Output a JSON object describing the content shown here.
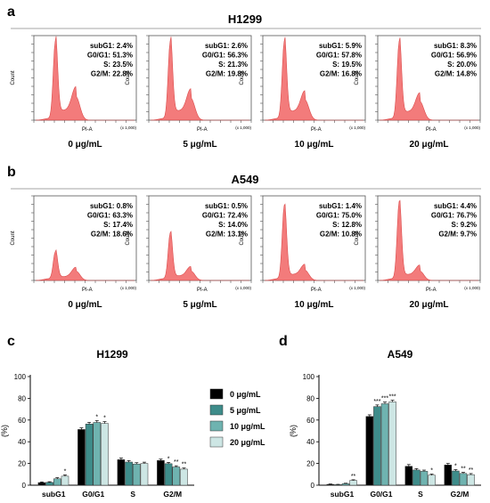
{
  "panel_labels": {
    "a": "a",
    "b": "b",
    "c": "c",
    "d": "d"
  },
  "histogram_axis": {
    "ylabel": "Count",
    "xlabel": "PI-A",
    "xscale": "(x 1,000)"
  },
  "dose_labels": [
    "0 μg/mL",
    "5 μg/mL",
    "10 μg/mL",
    "20 μg/mL"
  ],
  "colors": {
    "histogram_fill": "#f26d6d",
    "histogram_stroke": "#d83a3a",
    "bar_series": [
      "#000000",
      "#3e8c8a",
      "#6fb3b0",
      "#cde6e4"
    ]
  },
  "chart_data": [
    {
      "type": "histogram",
      "panel": "a",
      "title": "H1299",
      "plots": [
        {
          "dose": "0 μg/mL",
          "subG1": "subG1: 2.4%",
          "G0G1": "G0/G1: 51.3%",
          "S": "S: 23.5%",
          "G2M": "G2/M: 22.8%",
          "g1_peak": 1.0,
          "g2_peak": 0.3
        },
        {
          "dose": "5 μg/mL",
          "subG1": "subG1: 2.6%",
          "G0G1": "G0/G1: 56.3%",
          "S": "S: 21.3%",
          "G2M": "G2/M: 19.8%",
          "g1_peak": 1.0,
          "g2_peak": 0.28
        },
        {
          "dose": "10 μg/mL",
          "subG1": "subG1: 5.9%",
          "G0G1": "G0/G1: 57.8%",
          "S": "S: 19.5%",
          "G2M": "G2/M: 16.8%",
          "g1_peak": 1.0,
          "g2_peak": 0.26
        },
        {
          "dose": "20 μg/mL",
          "subG1": "subG1: 8.3%",
          "G0G1": "G0/G1: 56.9%",
          "S": "S: 20.0%",
          "G2M": "G2/M: 14.8%",
          "g1_peak": 1.0,
          "g2_peak": 0.24
        }
      ]
    },
    {
      "type": "histogram",
      "panel": "b",
      "title": "A549",
      "plots": [
        {
          "dose": "0 μg/mL",
          "subG1": "subG1: 0.8%",
          "G0G1": "G0/G1: 63.3%",
          "S": "S: 17.4%",
          "G2M": "G2/M: 18.6%",
          "g1_peak": 0.36,
          "g2_peak": 0.12
        },
        {
          "dose": "5 μg/mL",
          "subG1": "subG1: 0.5%",
          "G0G1": "G0/G1: 72.4%",
          "S": "S: 14.0%",
          "G2M": "G2/M: 13.1%",
          "g1_peak": 0.6,
          "g2_peak": 0.12
        },
        {
          "dose": "10 μg/mL",
          "subG1": "subG1: 1.4%",
          "G0G1": "G0/G1: 75.0%",
          "S": "S: 12.8%",
          "G2M": "G2/M: 10.8%",
          "g1_peak": 0.95,
          "g2_peak": 0.13
        },
        {
          "dose": "20 μg/mL",
          "subG1": "subG1: 4.4%",
          "G0G1": "G0/G1: 76.7%",
          "S": "S: 9.2%",
          "G2M": "G2/M: 9.7%",
          "g1_peak": 1.0,
          "g2_peak": 0.12
        }
      ]
    },
    {
      "type": "bar",
      "panel": "c",
      "title": "H1299",
      "ylabel": "(%)",
      "ylim": [
        0,
        100
      ],
      "yticks": [
        0,
        20,
        40,
        60,
        80,
        100
      ],
      "categories": [
        "subG1",
        "G0/G1",
        "S",
        "G2/M"
      ],
      "series": [
        {
          "name": "0 μg/mL",
          "values": [
            2.4,
            51.3,
            23.5,
            22.8
          ],
          "errors": [
            0.6,
            1.5,
            1.5,
            1.2
          ],
          "marks": [
            "",
            "",
            "",
            ""
          ]
        },
        {
          "name": "5 μg/mL",
          "values": [
            2.6,
            56.3,
            21.3,
            19.8
          ],
          "errors": [
            0.6,
            1.5,
            1.3,
            1.2
          ],
          "marks": [
            "",
            "",
            "",
            "*"
          ]
        },
        {
          "name": "10 μg/mL",
          "values": [
            5.9,
            57.8,
            19.5,
            16.8
          ],
          "errors": [
            1.0,
            1.6,
            1.2,
            1.1
          ],
          "marks": [
            "",
            "*",
            "",
            "**"
          ]
        },
        {
          "name": "20 μg/mL",
          "values": [
            8.3,
            56.9,
            20.0,
            14.8
          ],
          "errors": [
            1.2,
            1.6,
            1.2,
            1.0
          ],
          "marks": [
            "*",
            "*",
            "",
            "**"
          ]
        }
      ]
    },
    {
      "type": "bar",
      "panel": "d",
      "title": "A549",
      "ylabel": "(%)",
      "ylim": [
        0,
        100
      ],
      "yticks": [
        0,
        20,
        40,
        60,
        80,
        100
      ],
      "categories": [
        "subG1",
        "G0/G1",
        "S",
        "G2/M"
      ],
      "series": [
        {
          "name": "0 μg/mL",
          "values": [
            0.8,
            63.3,
            17.4,
            18.6
          ],
          "errors": [
            0.3,
            1.5,
            1.6,
            1.4
          ],
          "marks": [
            "",
            "",
            "",
            ""
          ]
        },
        {
          "name": "5 μg/mL",
          "values": [
            0.5,
            72.4,
            14.0,
            13.1
          ],
          "errors": [
            0.3,
            1.5,
            1.2,
            1.2
          ],
          "marks": [
            "",
            "***",
            "",
            "*"
          ]
        },
        {
          "name": "10 μg/mL",
          "values": [
            1.4,
            75.0,
            12.8,
            10.8
          ],
          "errors": [
            0.4,
            1.5,
            1.1,
            1.0
          ],
          "marks": [
            "",
            "***",
            "",
            "**"
          ]
        },
        {
          "name": "20 μg/mL",
          "values": [
            4.4,
            76.7,
            9.2,
            9.7
          ],
          "errors": [
            0.6,
            1.5,
            1.0,
            1.0
          ],
          "marks": [
            "**",
            "***",
            "*",
            "**"
          ]
        }
      ]
    }
  ]
}
